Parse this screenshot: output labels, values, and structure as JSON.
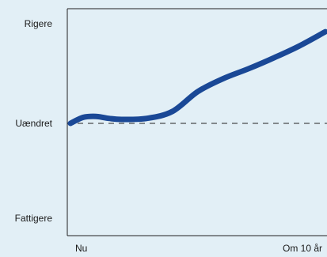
{
  "chart_data": {
    "type": "line",
    "title": "",
    "xlabel": "",
    "ylabel": "",
    "x_ticks": [
      "Nu",
      "Om 10 år"
    ],
    "y_ticks": [
      "Rigere",
      "Uændret",
      "Fattigere"
    ],
    "xlim": [
      0,
      10
    ],
    "ylim": [
      -1,
      1
    ],
    "grid": false,
    "legend": "none",
    "colors": {
      "line": "#1a4896",
      "reference": "#222222",
      "axis": "#222222",
      "background": "#e2eff6"
    },
    "reference_line": {
      "y": 0,
      "style": "dashed"
    },
    "series": [
      {
        "x": [
          0,
          0.5,
          1,
          1.5,
          2,
          3,
          4,
          5,
          6,
          7,
          8,
          9,
          10
        ],
        "values": [
          0,
          0.06,
          0.07,
          0.05,
          0.04,
          0.05,
          0.12,
          0.32,
          0.45,
          0.55,
          0.66,
          0.78,
          0.92
        ]
      }
    ]
  }
}
